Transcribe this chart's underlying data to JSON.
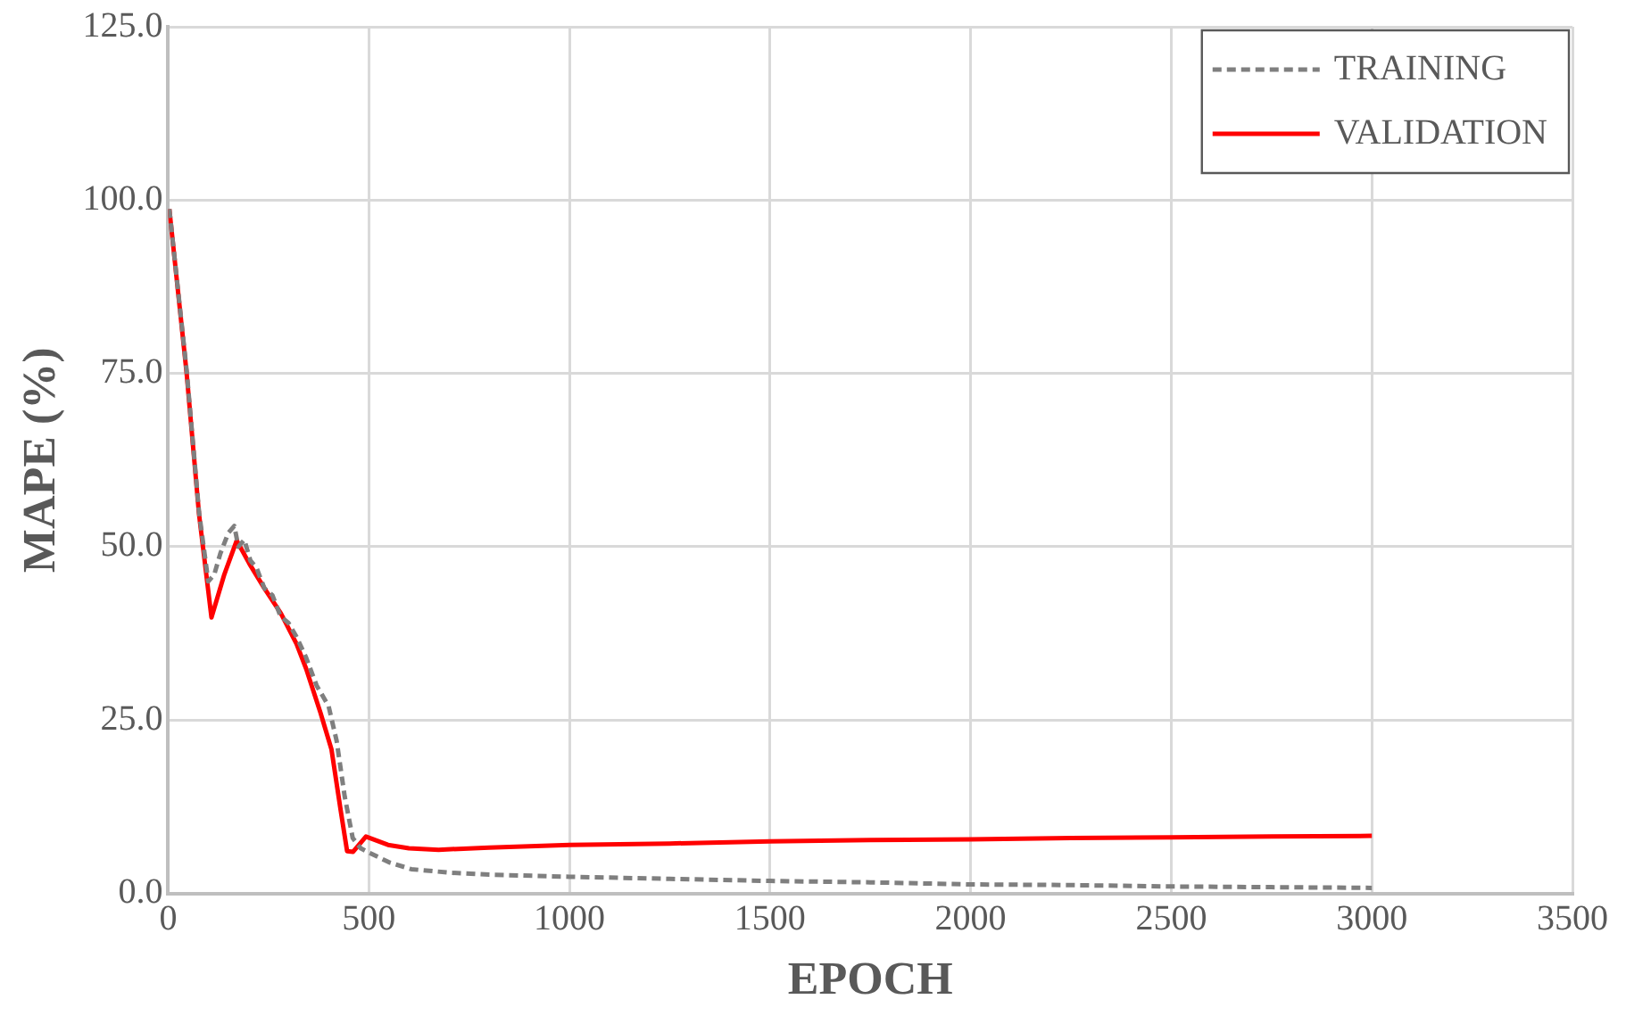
{
  "chart_data": {
    "type": "line",
    "xlabel": "EPOCH",
    "ylabel": "MAPE (%)",
    "xlim": [
      0,
      3500
    ],
    "xticks": [
      0,
      500,
      1000,
      1500,
      2000,
      2500,
      3000,
      3500
    ],
    "ylim": [
      0,
      125
    ],
    "yticks": [
      {
        "value": 0,
        "label": "0.0"
      },
      {
        "value": 25,
        "label": "25.0"
      },
      {
        "value": 50,
        "label": "50.0"
      },
      {
        "value": 75,
        "label": "75.0"
      },
      {
        "value": 100,
        "label": "100.0"
      },
      {
        "value": 125,
        "label": "125.0"
      }
    ],
    "grid": true,
    "legend": "top right",
    "marker": "none",
    "series": [
      {
        "name": "TRAINING",
        "color": "#7f7f7f",
        "line_style": "dashed",
        "x": [
          3,
          46,
          77,
          100,
          115,
          130,
          150,
          165,
          175,
          190,
          205,
          220,
          240,
          260,
          280,
          300,
          320,
          344,
          370,
          400,
          420,
          440,
          460,
          480,
          500,
          550,
          606,
          700,
          800,
          1000,
          1250,
          1500,
          1750,
          2000,
          2250,
          2500,
          2750,
          3000
        ],
        "values": [
          98.7,
          75.5,
          55,
          45,
          46,
          49,
          52,
          53,
          50,
          51,
          48,
          47,
          44,
          43,
          40,
          39,
          37,
          34,
          30,
          27,
          22,
          14,
          8,
          6.5,
          5.9,
          4.5,
          3.5,
          3.0,
          2.7,
          2.4,
          2.1,
          1.8,
          1.6,
          1.3,
          1.2,
          1.0,
          0.9,
          0.8
        ]
      },
      {
        "name": "VALIDATION",
        "color": "#ff0000",
        "line_style": "solid",
        "x": [
          3,
          46,
          77,
          108,
          140,
          171,
          203,
          240,
          281,
          320,
          344,
          380,
          407,
          430,
          446,
          461,
          493,
          548,
          600,
          674,
          800,
          1000,
          1250,
          1500,
          1750,
          2000,
          2250,
          2500,
          2750,
          3000
        ],
        "values": [
          98.7,
          75.1,
          54.7,
          39.8,
          46,
          50.9,
          47.5,
          44,
          40.4,
          36,
          32.4,
          26,
          20.8,
          12,
          6.1,
          6,
          8.2,
          7,
          6.5,
          6.3,
          6.6,
          7,
          7.2,
          7.5,
          7.7,
          7.8,
          8,
          8.1,
          8.2,
          8.3
        ]
      }
    ]
  }
}
